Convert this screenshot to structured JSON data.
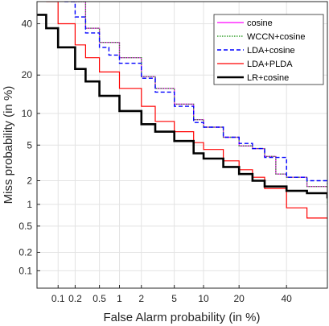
{
  "chart_data": {
    "type": "line",
    "title": "",
    "xlabel": "False Alarm probability (in %)",
    "ylabel": "Miss probability (in %)",
    "x_scale": "probit",
    "y_scale": "probit",
    "xlim": [
      0.04,
      60
    ],
    "ylim": [
      0.05,
      50
    ],
    "x_ticks": [
      {
        "value": 0.1,
        "label": "0.1"
      },
      {
        "value": 0.2,
        "label": "0.2"
      },
      {
        "value": 0.5,
        "label": "0.5"
      },
      {
        "value": 1,
        "label": "1"
      },
      {
        "value": 2,
        "label": "2"
      },
      {
        "value": 5,
        "label": "5"
      },
      {
        "value": 10,
        "label": "10"
      },
      {
        "value": 20,
        "label": "20"
      },
      {
        "value": 40,
        "label": "40"
      }
    ],
    "y_ticks": [
      {
        "value": 0.1,
        "label": "0.1"
      },
      {
        "value": 0.2,
        "label": "0.2"
      },
      {
        "value": 0.5,
        "label": "0.5"
      },
      {
        "value": 1,
        "label": "1"
      },
      {
        "value": 2,
        "label": "2"
      },
      {
        "value": 5,
        "label": "5"
      },
      {
        "value": 10,
        "label": "10"
      },
      {
        "value": 20,
        "label": "20"
      },
      {
        "value": 40,
        "label": "40"
      }
    ],
    "grid": true,
    "legend_position": "top-right",
    "series": [
      {
        "name": "cosine",
        "color": "#ff00ff",
        "style": "solid",
        "width": 1.2,
        "x": [
          0.17,
          0.3,
          0.5,
          1,
          2,
          3,
          5,
          8,
          10,
          15,
          20,
          25,
          30,
          35,
          40,
          50,
          60
        ],
        "y": [
          50,
          38,
          32,
          26,
          19.5,
          16,
          12,
          8.8,
          7.5,
          6,
          4.9,
          4.6,
          3.8,
          2.4,
          2.2,
          1.7,
          1.2
        ]
      },
      {
        "name": "WCCN+cosine",
        "color": "#33a02c",
        "style": "dotted",
        "width": 1.4,
        "x": [
          0.17,
          0.3,
          0.5,
          1,
          2,
          3,
          5,
          8,
          10,
          15,
          20,
          25,
          30,
          35,
          40,
          50,
          60
        ],
        "y": [
          50,
          38,
          32,
          26,
          19.5,
          16,
          12,
          8.8,
          7.5,
          6,
          4.9,
          4.6,
          3.8,
          2.4,
          2.2,
          1.7,
          1.0
        ]
      },
      {
        "name": "LDA+cosine",
        "color": "#0000ff",
        "style": "dashed",
        "width": 1.4,
        "x": [
          0.13,
          0.2,
          0.3,
          0.5,
          0.7,
          1,
          2,
          3,
          5,
          8,
          10,
          15,
          20,
          25,
          30,
          40,
          50,
          60
        ],
        "y": [
          50,
          43,
          36,
          30,
          27,
          24,
          19,
          15,
          11.5,
          8.3,
          7.5,
          6,
          5.2,
          4.6,
          3.7,
          2.2,
          2.0,
          1.8
        ]
      },
      {
        "name": "LDA+PLDA",
        "color": "#ff0000",
        "style": "solid",
        "width": 1.2,
        "x": [
          0.06,
          0.1,
          0.2,
          0.3,
          0.5,
          1,
          2,
          3,
          5,
          8,
          10,
          15,
          20,
          25,
          30,
          40,
          50,
          60
        ],
        "y": [
          50,
          40,
          31,
          26,
          21,
          16,
          11.5,
          8.5,
          6.8,
          5.3,
          4.5,
          3.4,
          2.7,
          2.2,
          1.6,
          0.9,
          0.65,
          0.63
        ]
      },
      {
        "name": "LR+cosine",
        "color": "#000000",
        "style": "solid",
        "width": 2.6,
        "x": [
          0.04,
          0.06,
          0.1,
          0.2,
          0.3,
          0.5,
          1,
          2,
          3,
          5,
          8,
          10,
          15,
          20,
          25,
          30,
          40,
          50,
          60
        ],
        "y": [
          44,
          38,
          30,
          22,
          18,
          14,
          10.5,
          8,
          6.8,
          5.5,
          4.1,
          3.6,
          2.9,
          2.4,
          2.0,
          1.7,
          1.5,
          1.4,
          1.2
        ]
      }
    ]
  }
}
